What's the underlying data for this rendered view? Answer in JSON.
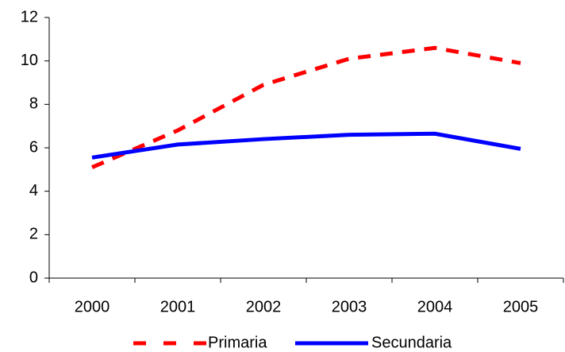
{
  "chart_data": {
    "type": "line",
    "categories": [
      "2000",
      "2001",
      "2002",
      "2003",
      "2004",
      "2005"
    ],
    "series": [
      {
        "name": "Primaria",
        "color": "#ff0000",
        "dashed": true,
        "values": [
          5.1,
          6.8,
          8.9,
          10.1,
          10.6,
          9.9
        ]
      },
      {
        "name": "Secundaria",
        "color": "#0000ff",
        "dashed": false,
        "values": [
          5.55,
          6.15,
          6.4,
          6.6,
          6.65,
          5.95
        ]
      }
    ],
    "ylim": [
      0,
      12
    ],
    "yticks": [
      0,
      2,
      4,
      6,
      8,
      10,
      12
    ],
    "grid": false,
    "legend": "bottom"
  }
}
